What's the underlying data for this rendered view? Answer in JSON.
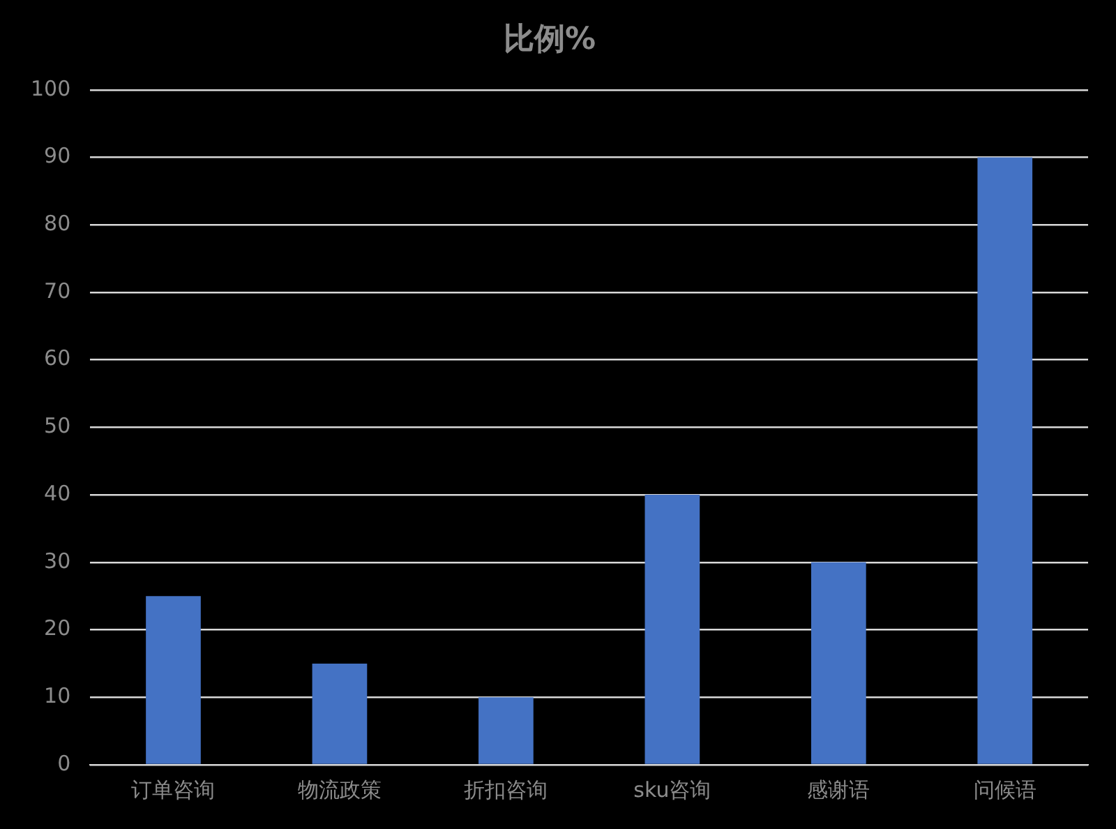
{
  "chart_data": {
    "type": "bar",
    "title": "比例%",
    "categories": [
      "订单咨询",
      "物流政策",
      "折扣咨询",
      "sku咨询",
      "感谢语",
      "问候语"
    ],
    "values": [
      25,
      15,
      10,
      40,
      30,
      90
    ],
    "color": "#4472c4",
    "ylim": [
      0,
      100
    ],
    "yticks": [
      0,
      10,
      20,
      30,
      40,
      50,
      60,
      70,
      80,
      90,
      100
    ],
    "grid": "y",
    "legend": false
  }
}
